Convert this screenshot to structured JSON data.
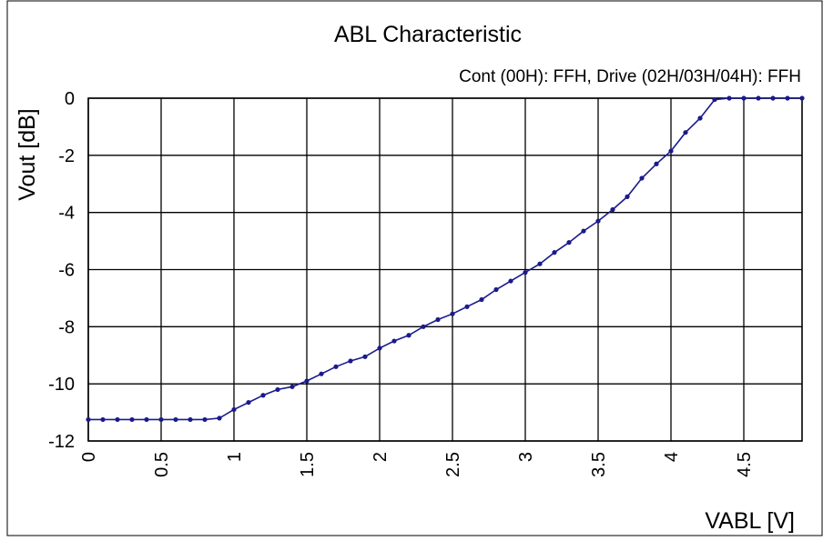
{
  "chart_data": {
    "type": "line",
    "title": "ABL Characteristic",
    "subtitle": "Cont (00H): FFH, Drive (02H/03H/04H): FFH",
    "xlabel": "VABL [V]",
    "ylabel": "Vout [dB]",
    "xlim": [
      0,
      4.9
    ],
    "ylim": [
      -12,
      0
    ],
    "xticks": [
      0,
      0.5,
      1,
      1.5,
      2,
      2.5,
      3,
      3.5,
      4,
      4.5
    ],
    "xtick_labels": [
      "0",
      "0.5",
      "1",
      "1.5",
      "2",
      "2.5",
      "3",
      "3.5",
      "4",
      "4.5"
    ],
    "yticks": [
      0,
      -2,
      -4,
      -6,
      -8,
      -10,
      -12
    ],
    "ytick_labels": [
      "0",
      "-2",
      "-4",
      "-6",
      "-8",
      "-10",
      "-12"
    ],
    "grid": true,
    "line_color": "#1a1a8c",
    "series": [
      {
        "x": [
          0,
          0.1,
          0.2,
          0.3,
          0.4,
          0.5,
          0.6,
          0.7,
          0.8,
          0.9,
          1.0,
          1.1,
          1.2,
          1.3,
          1.4,
          1.5,
          1.6,
          1.7,
          1.8,
          1.9,
          2.0,
          2.1,
          2.2,
          2.3,
          2.4,
          2.5,
          2.6,
          2.7,
          2.8,
          2.9,
          3.0,
          3.1,
          3.2,
          3.3,
          3.4,
          3.5,
          3.6,
          3.7,
          3.8,
          3.9,
          4.0,
          4.1,
          4.2,
          4.3,
          4.4,
          4.5,
          4.6,
          4.7,
          4.8,
          4.9
        ],
        "y": [
          -11.25,
          -11.25,
          -11.25,
          -11.25,
          -11.25,
          -11.25,
          -11.25,
          -11.25,
          -11.25,
          -11.2,
          -10.9,
          -10.65,
          -10.4,
          -10.2,
          -10.1,
          -9.9,
          -9.65,
          -9.4,
          -9.2,
          -9.05,
          -8.75,
          -8.5,
          -8.3,
          -8.0,
          -7.75,
          -7.55,
          -7.3,
          -7.05,
          -6.7,
          -6.4,
          -6.1,
          -5.8,
          -5.4,
          -5.05,
          -4.65,
          -4.3,
          -3.9,
          -3.45,
          -2.8,
          -2.3,
          -1.85,
          -1.2,
          -0.7,
          -0.05,
          0,
          0,
          0,
          0,
          0,
          0
        ]
      }
    ]
  }
}
